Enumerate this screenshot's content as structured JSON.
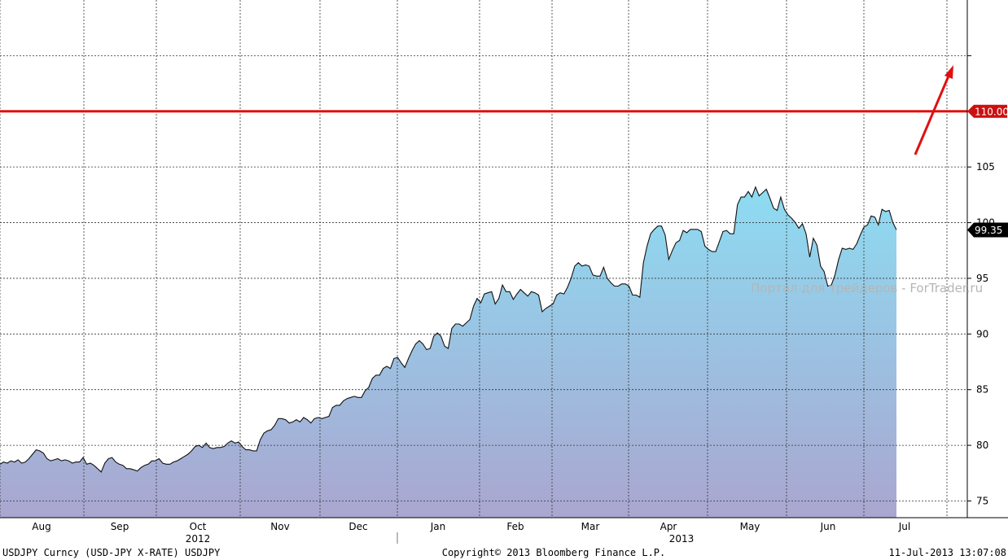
{
  "chart_data": {
    "type": "area",
    "title": "",
    "xlabel": "",
    "ylabel": "",
    "ylim": [
      73.5,
      120
    ],
    "y_ticks": [
      75,
      80,
      85,
      90,
      95,
      100,
      105
    ],
    "y_tick_labels": [
      "75",
      "80",
      "85",
      "90",
      "95",
      "100",
      "105"
    ],
    "x_month_labels": [
      "Aug",
      "Sep",
      "Oct",
      "Nov",
      "Dec",
      "Jan",
      "Feb",
      "Mar",
      "Apr",
      "May",
      "Jun",
      "Jul"
    ],
    "year_labels": [
      "2012",
      "2013"
    ],
    "series": [
      {
        "values": [
          78.3,
          78.5,
          78.4,
          78.6,
          78.5,
          78.7,
          78.4,
          78.5,
          78.8,
          79.2,
          79.6,
          79.5,
          79.3,
          78.8,
          78.6,
          78.7,
          78.8,
          78.6,
          78.7,
          78.6,
          78.4,
          78.5,
          78.5,
          78.9,
          78.3,
          78.4,
          78.2,
          77.9,
          77.6,
          78.4,
          78.8,
          78.9,
          78.5,
          78.3,
          78.2,
          77.9,
          77.9,
          77.8,
          77.7,
          78.0,
          78.2,
          78.3,
          78.6,
          78.6,
          78.8,
          78.4,
          78.3,
          78.3,
          78.5,
          78.6,
          78.8,
          79.0,
          79.2,
          79.5,
          79.9,
          80.0,
          79.8,
          80.2,
          79.8,
          79.7,
          79.8,
          79.8,
          79.9,
          80.2,
          80.4,
          80.2,
          80.3,
          79.9,
          79.6,
          79.6,
          79.5,
          79.5,
          80.5,
          81.1,
          81.3,
          81.4,
          81.8,
          82.4,
          82.4,
          82.3,
          82.0,
          82.1,
          82.3,
          82.1,
          82.5,
          82.3,
          82.0,
          82.4,
          82.5,
          82.4,
          82.5,
          82.6,
          83.4,
          83.6,
          83.6,
          84.0,
          84.2,
          84.3,
          84.4,
          84.3,
          84.3,
          84.9,
          85.2,
          86.0,
          86.3,
          86.3,
          86.9,
          87.1,
          86.9,
          87.8,
          87.9,
          87.4,
          87.0,
          87.8,
          88.5,
          89.1,
          89.4,
          89.1,
          88.6,
          88.7,
          89.8,
          90.1,
          89.8,
          88.9,
          88.7,
          90.5,
          90.9,
          90.9,
          90.7,
          91.0,
          91.3,
          92.5,
          93.2,
          92.8,
          93.6,
          93.7,
          93.8,
          92.7,
          93.2,
          94.4,
          93.8,
          93.8,
          93.1,
          93.6,
          94.0,
          93.7,
          93.4,
          93.8,
          93.7,
          93.5,
          92.0,
          92.3,
          92.5,
          92.7,
          93.5,
          93.7,
          93.6,
          94.2,
          95.0,
          96.1,
          96.4,
          96.1,
          96.2,
          96.1,
          95.3,
          95.2,
          95.2,
          96.0,
          95.0,
          94.6,
          94.3,
          94.3,
          94.5,
          94.5,
          94.3,
          93.5,
          93.5,
          93.3,
          96.4,
          97.9,
          99.0,
          99.4,
          99.7,
          99.7,
          98.9,
          96.7,
          97.5,
          98.2,
          98.4,
          99.3,
          99.1,
          99.4,
          99.4,
          99.4,
          99.2,
          97.9,
          97.6,
          97.4,
          97.4,
          98.3,
          99.2,
          99.3,
          99.0,
          99.0,
          101.6,
          102.3,
          102.3,
          102.8,
          102.3,
          103.2,
          102.4,
          102.7,
          103.0,
          102.2,
          101.3,
          101.1,
          102.3,
          101.2,
          100.7,
          100.4,
          100.0,
          99.5,
          99.9,
          99.0,
          96.9,
          98.6,
          98.0,
          96.1,
          95.6,
          94.3,
          94.4,
          95.3,
          96.7,
          97.7,
          97.6,
          97.7,
          97.6,
          98.1,
          98.9,
          99.6,
          99.8,
          100.6,
          100.5,
          99.8,
          101.2,
          101.0,
          101.1,
          100.0,
          99.35
        ]
      }
    ],
    "reference_line": {
      "value": 110.0,
      "label": "110.00",
      "color": "#e01010"
    },
    "last_value": {
      "value": 99.35,
      "label": "99.35"
    },
    "colors": {
      "fill_top": "#8ddcf2",
      "fill_bottom": "#aaa6d0",
      "line": "#111111",
      "grid": "#333333",
      "target": "#e01010"
    },
    "grid": true,
    "arrow": "red arrow pointing up toward the 110.00 level"
  },
  "footer": {
    "left": "USDJPY Curncy (USD-JPY X-RATE) USDJPY",
    "center": "Copyright© 2013 Bloomberg Finance L.P.",
    "right": "11-Jul-2013 13:07:08"
  },
  "watermark": "Портал для трейдеров - ForTrader.ru"
}
